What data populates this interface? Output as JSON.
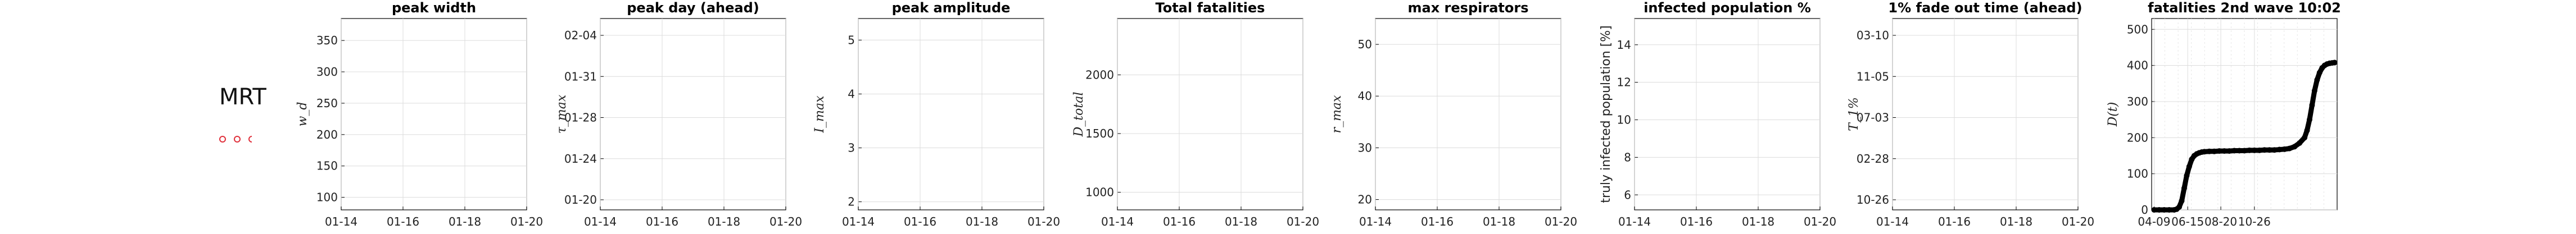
{
  "country": "MRT",
  "markers": {
    "count": 3,
    "color": "#e0303b"
  },
  "chart_data": [
    {
      "type": "scatter",
      "title": "peak width",
      "ylabel": "w_d",
      "yticks": [
        "100",
        "150",
        "200",
        "250",
        "300",
        "350"
      ],
      "ylim": [
        80,
        385
      ],
      "xticks": [
        "01-14",
        "01-16",
        "01-18",
        "01-20"
      ],
      "series": []
    },
    {
      "type": "scatter",
      "title": "peak day (ahead)",
      "ylabel": "τ_max",
      "yticks": [
        "01-20",
        "01-24",
        "01-28",
        "01-31",
        "02-04"
      ],
      "ylim": [
        0,
        1
      ],
      "xticks": [
        "01-14",
        "01-16",
        "01-18",
        "01-20"
      ],
      "series": []
    },
    {
      "type": "scatter",
      "title": "peak amplitude",
      "ylabel": "I_max",
      "yticks": [
        "2",
        "3",
        "4",
        "5"
      ],
      "ylim": [
        1.85,
        5.4
      ],
      "xticks": [
        "01-14",
        "01-16",
        "01-18",
        "01-20"
      ],
      "series": []
    },
    {
      "type": "scatter",
      "title": "Total fatalities",
      "ylabel": "D_total",
      "yticks": [
        "1000",
        "1500",
        "2000"
      ],
      "ylim": [
        850,
        2480
      ],
      "xticks": [
        "01-14",
        "01-16",
        "01-18",
        "01-20"
      ],
      "series": []
    },
    {
      "type": "scatter",
      "title": "max respirators",
      "ylabel": "r_max",
      "yticks": [
        "20",
        "30",
        "40",
        "50"
      ],
      "ylim": [
        18,
        55
      ],
      "xticks": [
        "01-14",
        "01-16",
        "01-18",
        "01-20"
      ],
      "series": []
    },
    {
      "type": "scatter",
      "title": "infected population %",
      "ylabel": "truly infected population [%]",
      "yticks": [
        "6",
        "8",
        "10",
        "12",
        "14"
      ],
      "ylim": [
        5.2,
        15.4
      ],
      "xticks": [
        "01-14",
        "01-16",
        "01-18",
        "01-20"
      ],
      "series": []
    },
    {
      "type": "scatter",
      "title": "1% fade out time (ahead)",
      "ylabel": "T_1%",
      "yticks": [
        "10-26",
        "02-28",
        "07-03",
        "11-05",
        "03-10"
      ],
      "ylim": [
        0,
        1
      ],
      "xticks": [
        "01-14",
        "01-16",
        "01-18",
        "01-20"
      ],
      "series": []
    },
    {
      "type": "line",
      "title": "fatalities 2nd wave 10:02",
      "ylabel": "D(t)",
      "yticks": [
        "0",
        "100",
        "200",
        "300",
        "400",
        "500"
      ],
      "ylim": [
        0,
        530
      ],
      "xticks": [
        "04-09",
        "06-15",
        "08-20",
        "10-26"
      ],
      "series": [
        {
          "x": [
            0,
            10,
            20,
            30,
            40,
            45,
            50,
            55,
            60,
            65,
            70,
            75,
            80,
            85,
            90,
            95,
            100,
            110,
            120,
            130,
            140,
            150,
            160,
            170,
            180,
            190,
            200,
            210,
            220,
            230,
            240,
            250,
            260,
            270,
            280,
            290,
            300,
            305,
            310,
            315,
            320,
            325,
            330,
            335,
            340,
            345,
            350,
            355,
            360
          ],
          "y": [
            0,
            0,
            0,
            0,
            0,
            2,
            8,
            25,
            60,
            95,
            120,
            140,
            150,
            155,
            158,
            160,
            161,
            162,
            162,
            163,
            163,
            163,
            164,
            164,
            164,
            165,
            165,
            165,
            166,
            166,
            166,
            167,
            168,
            170,
            175,
            185,
            200,
            220,
            250,
            290,
            330,
            360,
            380,
            393,
            400,
            404,
            406,
            407,
            408
          ]
        }
      ],
      "xlim": [
        -5,
        365
      ],
      "line_color": "#000000"
    }
  ]
}
